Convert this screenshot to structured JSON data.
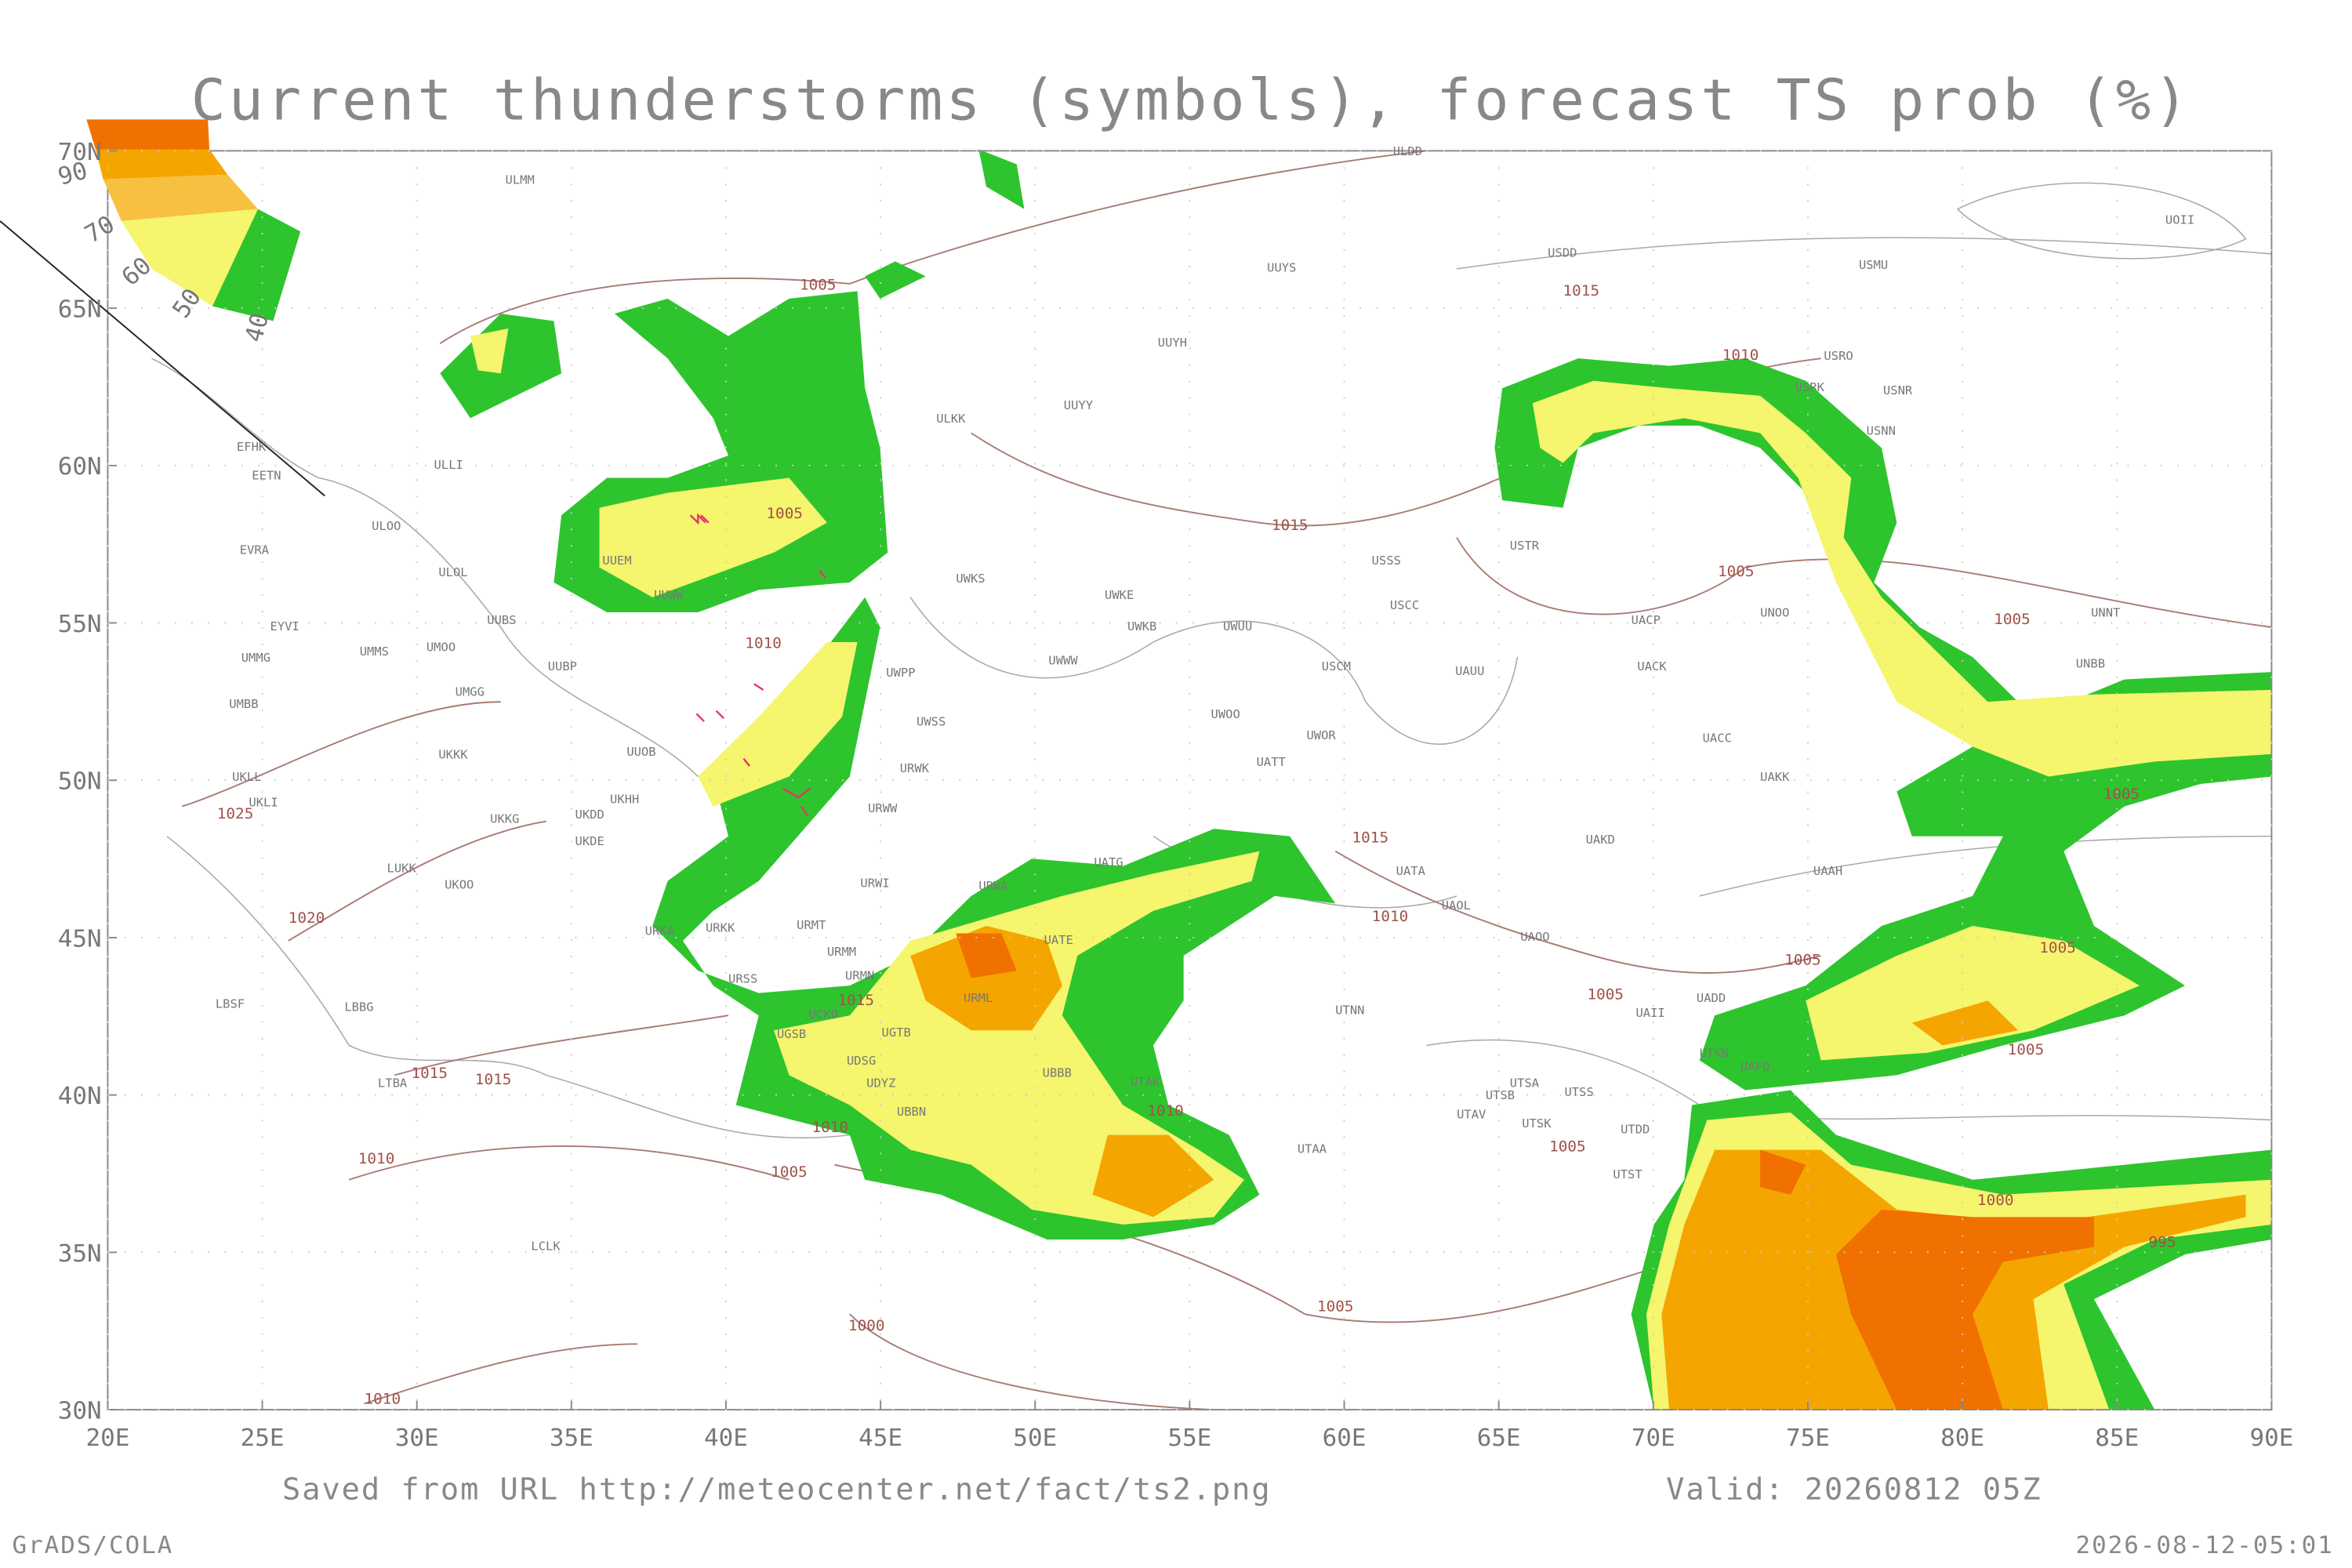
{
  "title": "Current thunderstorms (symbols), forecast TS prob (%)",
  "map": {
    "lon_ticks": [
      "20E",
      "25E",
      "30E",
      "35E",
      "40E",
      "45E",
      "50E",
      "55E",
      "60E",
      "65E",
      "70E",
      "75E",
      "80E",
      "85E",
      "90E"
    ],
    "lat_ticks": [
      "30N",
      "35N",
      "40N",
      "45N",
      "50N",
      "55N",
      "60N",
      "65N",
      "70N"
    ],
    "legend": [
      "90",
      "70",
      "60",
      "50",
      "40"
    ],
    "stations": [
      "ULMM",
      "ULDD",
      "UUYS",
      "USDD",
      "USMU",
      "UOII",
      "UUYH",
      "USRO",
      "USRK",
      "USNR",
      "USNN",
      "UUYY",
      "ULKK",
      "EFHK",
      "EETN",
      "ULLI",
      "ULOO",
      "EVRA",
      "ULOL",
      "UUEM",
      "UUWW",
      "UWKS",
      "UWKE",
      "UWKB",
      "UWUU",
      "USSS",
      "USCC",
      "USTR",
      "UUBS",
      "EYVI",
      "UMMG",
      "UMMS",
      "UMOO",
      "UUBP",
      "UWPP",
      "UWWW",
      "USCM",
      "UACP",
      "UNOO",
      "UNNT",
      "UNBB",
      "UACK",
      "UAUU",
      "UMBB",
      "UMGG",
      "UWSS",
      "UWOO",
      "UWOR",
      "UATT",
      "UACC",
      "UAKK",
      "UUOB",
      "UKKK",
      "URWK",
      "UKLL",
      "UKLI",
      "UKHH",
      "UKKG",
      "UKDD",
      "UKDE",
      "URWW",
      "UAKD",
      "UATG",
      "UATA",
      "UAAH",
      "UKOO",
      "LUKK",
      "URWI",
      "URKA",
      "URKK",
      "URMT",
      "URMM",
      "URMN",
      "URSS",
      "UATE",
      "URWA",
      "UAOL",
      "UAOO",
      "UDSG",
      "UDYZ",
      "UGTB",
      "UGSB",
      "UBBB",
      "UBBN",
      "UTAK",
      "URML",
      "UTNN",
      "UADD",
      "UAII",
      "UTKN",
      "UAFO",
      "UTSA",
      "UTSB",
      "UTSS",
      "UTAV",
      "UTSK",
      "UTDD",
      "UTAA",
      "UTST",
      "LCLK",
      "LBSF",
      "LBBG",
      "LTBA",
      "UCKO"
    ],
    "isobar_labels": [
      "1005",
      "1015",
      "1010",
      "1005",
      "1015",
      "1005",
      "1005",
      "1010",
      "1025",
      "1005",
      "1015",
      "1020",
      "1010",
      "1005",
      "1005",
      "1005",
      "1015",
      "1005",
      "1015",
      "1015",
      "1010",
      "1010",
      "1010",
      "1005",
      "1005",
      "1000",
      "995",
      "1005",
      "1000",
      "1010"
    ]
  },
  "footer": {
    "source": "Saved from URL http://meteocenter.net/fact/ts2.png",
    "valid": "Valid: 20260812 05Z",
    "left": "GrADS/COLA",
    "right": "2026-08-12-05:01"
  }
}
